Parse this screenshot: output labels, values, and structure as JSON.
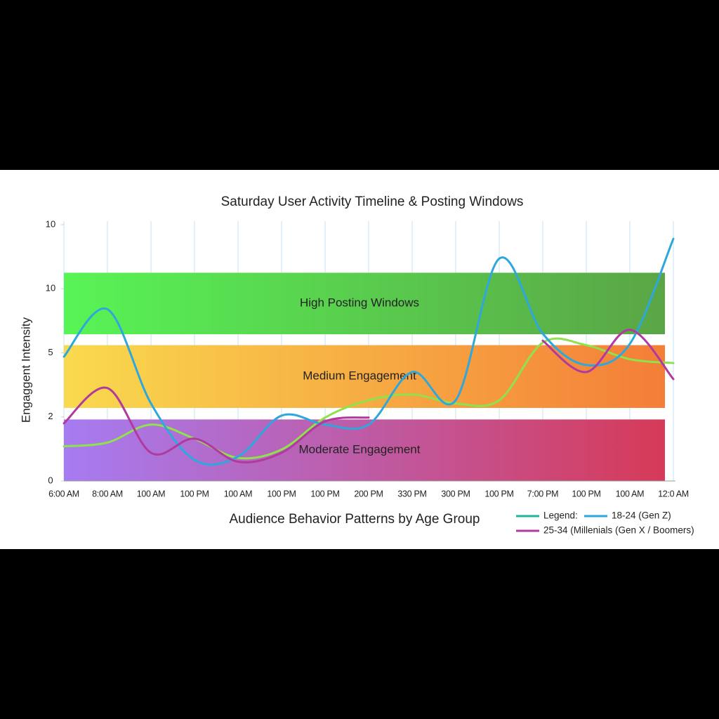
{
  "chart_data": {
    "type": "line",
    "title": "Saturday User Activity Timeline & Posting Windows",
    "x_label": "Audience Behavior Patterns by Age Group",
    "y_label": "Engaggent Intensity",
    "categories": [
      "6:00 AM",
      "8:00 AM",
      "100 AM",
      "100 PM",
      "100 AM",
      "100 PM",
      "100 PM",
      "200 PM",
      "330 PM",
      "300 PM",
      "100 PM",
      "7:00 PM",
      "100 PM",
      "100 AM",
      "12:0 AM"
    ],
    "ylim": [
      0,
      4
    ],
    "yticks": [
      0,
      {
        "value": 1,
        "label": "2"
      },
      {
        "value": 2,
        "label": "5"
      },
      {
        "value": 3,
        "label": "10"
      },
      {
        "value": 4,
        "label": "10"
      }
    ],
    "grid": true,
    "bands": [
      {
        "label": "High Posting Windows",
        "range": [
          2.29,
          3.25
        ],
        "colors": [
          "#58f455",
          "#5aa546"
        ]
      },
      {
        "label": "Medium Engagement",
        "range": [
          1.14,
          2.12
        ],
        "colors": [
          "#f9da4e",
          "#f47e38"
        ]
      },
      {
        "label": "Moderate Engagement",
        "range": [
          0,
          0.96
        ],
        "colors": [
          "#a67cf2",
          "#d63a58"
        ]
      }
    ],
    "legend_title": "Legend:",
    "legend_title_color": "#1fb59a",
    "series": [
      {
        "color": "#8fe24c",
        "values": [
          0.54,
          0.6,
          0.88,
          0.66,
          0.36,
          0.49,
          0.99,
          1.26,
          1.35,
          1.21,
          1.26,
          2.16,
          2.12,
          1.9,
          1.84
        ]
      },
      {
        "name": "18-24 (Gen Z)",
        "color": "#2ea8dc",
        "values": [
          1.94,
          2.68,
          1.21,
          0.33,
          0.38,
          1.02,
          0.88,
          0.88,
          1.7,
          1.26,
          3.47,
          2.3,
          1.81,
          2.14,
          3.78
        ]
      },
      {
        "name": "25-34 (Millenials (Gen X / Boomers)",
        "color": "#b03a9e",
        "values": [
          0.9,
          1.45,
          0.44,
          0.66,
          0.3,
          0.44,
          0.93,
          0.99,
          null,
          null,
          null,
          2.19,
          1.7,
          2.36,
          1.59
        ]
      }
    ]
  }
}
